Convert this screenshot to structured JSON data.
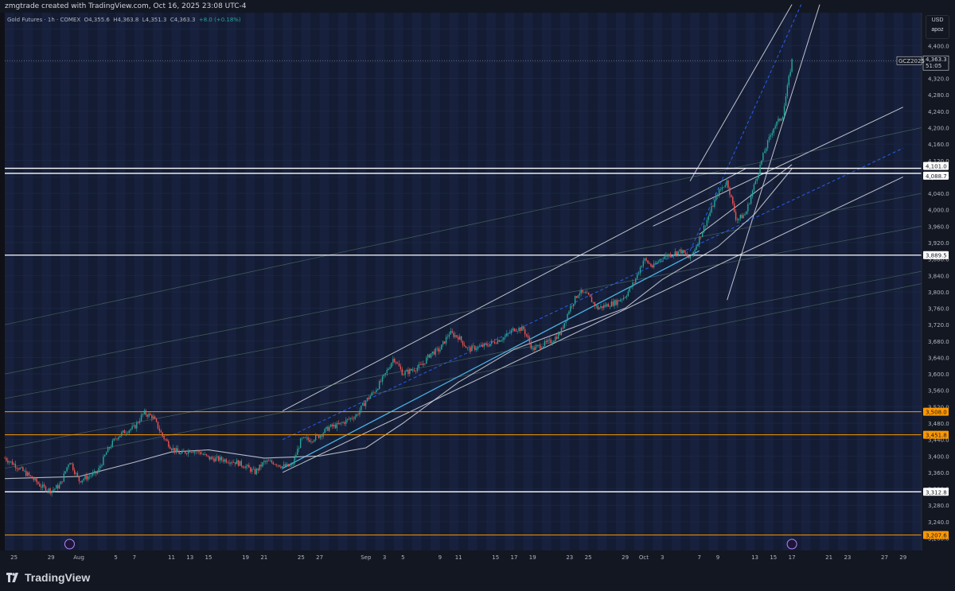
{
  "header": {
    "creator_line": "zmgtrade created with TradingView.com, Oct 16, 2025 23:08 UTC-4",
    "symbol_name": "Gold Futures · 1h · COMEX",
    "open": "O4,355.6",
    "high": "H4,363.8",
    "low": "L4,351.3",
    "close": "C4,363.3",
    "change": "+8.0 (+0.18%)"
  },
  "scale_box": {
    "currency": "USD",
    "mode": "apoz"
  },
  "footer": {
    "brand": "TradingView"
  },
  "colors": {
    "background": "#131c33",
    "grid_band": "#17213d",
    "grid_line": "#1f2a48",
    "up_candle": "#26a69a",
    "down_candle": "#ef5350",
    "white_level": "#ffffff",
    "orange_level": "#ff9800",
    "trend_white": "#d1d4dc",
    "trend_cyan": "#4fc3f7",
    "dashed_channel": "#2962ff",
    "faint_line": "#6a8f7a"
  },
  "chart_data": {
    "type": "candlestick",
    "instrument": "GCZ2025",
    "timeframe": "1h",
    "ylim": [
      3170,
      4480
    ],
    "y_ticks": [
      4440,
      4400,
      4360,
      4320,
      4280,
      4240,
      4200,
      4160,
      4120,
      4080,
      4040,
      4000,
      3960,
      3920,
      3880,
      3840,
      3800,
      3760,
      3720,
      3680,
      3640,
      3600,
      3560,
      3520,
      3480,
      3440,
      3400,
      3360,
      3320,
      3280,
      3240,
      3200
    ],
    "y_tick_labels": [
      "4,440.0",
      "4,400.0",
      "4,360.0",
      "4,320.0",
      "4,280.0",
      "4,240.0",
      "4,200.0",
      "4,160.0",
      "4,120.0",
      "4,080.0",
      "4,040.0",
      "4,000.0",
      "3,960.0",
      "3,920.0",
      "3,880.0",
      "3,840.0",
      "3,800.0",
      "3,760.0",
      "3,720.0",
      "3,680.0",
      "3,640.0",
      "3,600.0",
      "3,560.0",
      "3,520.0",
      "3,480.0",
      "3,440.0",
      "3,400.0",
      "3,360.0",
      "3,320.0",
      "3,280.0",
      "3,240.0",
      "3,200.0"
    ],
    "x_dates": [
      "2025-07-24",
      "2025-07-25",
      "2025-07-29",
      "2025-08-01",
      "2025-08-05",
      "2025-08-07",
      "2025-08-11",
      "2025-08-13",
      "2025-08-15",
      "2025-08-19",
      "2025-08-21",
      "2025-08-25",
      "2025-08-27",
      "2025-09-01",
      "2025-09-03",
      "2025-09-05",
      "2025-09-09",
      "2025-09-11",
      "2025-09-15",
      "2025-09-17",
      "2025-09-19",
      "2025-09-23",
      "2025-09-25",
      "2025-09-29",
      "2025-10-01",
      "2025-10-03",
      "2025-10-07",
      "2025-10-09",
      "2025-10-13",
      "2025-10-15",
      "2025-10-17",
      "2025-10-21",
      "2025-10-23",
      "2025-10-27",
      "2025-10-29"
    ],
    "x_tick_labels": [
      "25",
      "29",
      "Aug",
      "5",
      "7",
      "11",
      "13",
      "15",
      "19",
      "21",
      "25",
      "27",
      "Sep",
      "3",
      "5",
      "9",
      "11",
      "15",
      "17",
      "19",
      "23",
      "25",
      "29",
      "Oct",
      "3",
      "7",
      "9",
      "13",
      "15",
      "17",
      "21",
      "23",
      "27",
      "29"
    ],
    "x_tick_dates": [
      "2025-07-25",
      "2025-07-29",
      "2025-08-01",
      "2025-08-05",
      "2025-08-07",
      "2025-08-11",
      "2025-08-13",
      "2025-08-15",
      "2025-08-19",
      "2025-08-21",
      "2025-08-25",
      "2025-08-27",
      "2025-09-01",
      "2025-09-03",
      "2025-09-05",
      "2025-09-09",
      "2025-09-11",
      "2025-09-15",
      "2025-09-17",
      "2025-09-19",
      "2025-09-23",
      "2025-09-25",
      "2025-09-29",
      "2025-10-01",
      "2025-10-03",
      "2025-10-07",
      "2025-10-09",
      "2025-10-13",
      "2025-10-15",
      "2025-10-17",
      "2025-10-21",
      "2025-10-23",
      "2025-10-27",
      "2025-10-29"
    ],
    "price_path": [
      [
        "2025-07-24",
        3395
      ],
      [
        "2025-07-25",
        3380
      ],
      [
        "2025-07-27",
        3345
      ],
      [
        "2025-07-28",
        3325
      ],
      [
        "2025-07-29",
        3315
      ],
      [
        "2025-07-30",
        3330
      ],
      [
        "2025-07-31",
        3390
      ],
      [
        "2025-08-01",
        3340
      ],
      [
        "2025-08-03",
        3360
      ],
      [
        "2025-08-04",
        3410
      ],
      [
        "2025-08-05",
        3445
      ],
      [
        "2025-08-06",
        3460
      ],
      [
        "2025-08-07",
        3470
      ],
      [
        "2025-08-08",
        3505
      ],
      [
        "2025-08-09",
        3495
      ],
      [
        "2025-08-10",
        3450
      ],
      [
        "2025-08-11",
        3420
      ],
      [
        "2025-08-12",
        3405
      ],
      [
        "2025-08-13",
        3415
      ],
      [
        "2025-08-14",
        3410
      ],
      [
        "2025-08-15",
        3395
      ],
      [
        "2025-08-17",
        3390
      ],
      [
        "2025-08-18",
        3385
      ],
      [
        "2025-08-19",
        3375
      ],
      [
        "2025-08-20",
        3360
      ],
      [
        "2025-08-21",
        3385
      ],
      [
        "2025-08-22",
        3385
      ],
      [
        "2025-08-23",
        3375
      ],
      [
        "2025-08-24",
        3375
      ],
      [
        "2025-08-25",
        3440
      ],
      [
        "2025-08-26",
        3440
      ],
      [
        "2025-08-27",
        3450
      ],
      [
        "2025-08-28",
        3470
      ],
      [
        "2025-08-29",
        3475
      ],
      [
        "2025-08-31",
        3500
      ],
      [
        "2025-09-01",
        3535
      ],
      [
        "2025-09-02",
        3560
      ],
      [
        "2025-09-03",
        3595
      ],
      [
        "2025-09-04",
        3640
      ],
      [
        "2025-09-05",
        3600
      ],
      [
        "2025-09-07",
        3620
      ],
      [
        "2025-09-08",
        3650
      ],
      [
        "2025-09-09",
        3660
      ],
      [
        "2025-09-10",
        3700
      ],
      [
        "2025-09-11",
        3690
      ],
      [
        "2025-09-12",
        3660
      ],
      [
        "2025-09-14",
        3670
      ],
      [
        "2025-09-15",
        3680
      ],
      [
        "2025-09-16",
        3690
      ],
      [
        "2025-09-17",
        3710
      ],
      [
        "2025-09-18",
        3710
      ],
      [
        "2025-09-19",
        3660
      ],
      [
        "2025-09-21",
        3680
      ],
      [
        "2025-09-22",
        3700
      ],
      [
        "2025-09-23",
        3760
      ],
      [
        "2025-09-24",
        3800
      ],
      [
        "2025-09-25",
        3790
      ],
      [
        "2025-09-26",
        3760
      ],
      [
        "2025-09-28",
        3775
      ],
      [
        "2025-09-29",
        3790
      ],
      [
        "2025-09-30",
        3825
      ],
      [
        "2025-10-01",
        3880
      ],
      [
        "2025-10-02",
        3860
      ],
      [
        "2025-10-03",
        3885
      ],
      [
        "2025-10-05",
        3900
      ],
      [
        "2025-10-06",
        3880
      ],
      [
        "2025-10-07",
        3930
      ],
      [
        "2025-10-08",
        3985
      ],
      [
        "2025-10-09",
        4040
      ],
      [
        "2025-10-10",
        4070
      ],
      [
        "2025-10-11",
        3975
      ],
      [
        "2025-10-12",
        3990
      ],
      [
        "2025-10-13",
        4065
      ],
      [
        "2025-10-14",
        4140
      ],
      [
        "2025-10-15",
        4200
      ],
      [
        "2025-10-16",
        4230
      ],
      [
        "2025-10-17",
        4363.3
      ]
    ],
    "horizontal_levels": [
      {
        "label": "4,101.0",
        "value": 4101.0,
        "color": "white"
      },
      {
        "label": "4,088.7",
        "value": 4088.7,
        "color": "white"
      },
      {
        "label": "3,889.5",
        "value": 3889.5,
        "color": "white"
      },
      {
        "label": "3,508.0",
        "value": 3508.0,
        "color": "orange"
      },
      {
        "label": "3,451.8",
        "value": 3451.8,
        "color": "orange"
      },
      {
        "label": "3,312.8",
        "value": 3312.8,
        "color": "white"
      },
      {
        "label": "3,207.6",
        "value": 3207.6,
        "color": "orange"
      }
    ],
    "last_price": {
      "symbol": "GCZ2025",
      "value": 4363.3,
      "label": "4,363.3",
      "countdown": "51:05"
    },
    "trendlines": [
      {
        "style": "white",
        "from": [
          "2025-08-23",
          3510
        ],
        "to": [
          "2025-10-12",
          4100
        ]
      },
      {
        "style": "white",
        "from": [
          "2025-08-23",
          3360
        ],
        "to": [
          "2025-10-29",
          4080
        ]
      },
      {
        "style": "white",
        "from": [
          "2025-10-02",
          3960
        ],
        "to": [
          "2025-10-29",
          4250
        ]
      },
      {
        "style": "white",
        "from": [
          "2025-10-06",
          4070
        ],
        "to": [
          "2025-10-17",
          4500
        ]
      },
      {
        "style": "white",
        "from": [
          "2025-10-10",
          3780
        ],
        "to": [
          "2025-10-20",
          4500
        ]
      },
      {
        "style": "white",
        "from": [
          "2025-10-07",
          3940
        ],
        "to": [
          "2025-10-17",
          4110
        ]
      },
      {
        "style": "cyan",
        "from": [
          "2025-08-23",
          3370
        ],
        "to": [
          "2025-10-07",
          3900
        ]
      },
      {
        "style": "dashed",
        "from": [
          "2025-08-23",
          3440
        ],
        "to": [
          "2025-10-29",
          4150
        ]
      },
      {
        "style": "dashed",
        "from": [
          "2025-10-06",
          3900
        ],
        "to": [
          "2025-10-18",
          4500
        ]
      },
      {
        "style": "faint",
        "from": [
          "2025-07-24",
          3420
        ],
        "to": [
          "2025-10-31",
          3850
        ]
      },
      {
        "style": "faint",
        "from": [
          "2025-07-24",
          3540
        ],
        "to": [
          "2025-10-31",
          3960
        ]
      },
      {
        "style": "faint",
        "from": [
          "2025-07-24",
          3720
        ],
        "to": [
          "2025-10-31",
          4200
        ]
      },
      {
        "style": "faint",
        "from": [
          "2025-07-24",
          3600
        ],
        "to": [
          "2025-10-31",
          4040
        ]
      },
      {
        "style": "faint",
        "from": [
          "2025-07-24",
          3370
        ],
        "to": [
          "2025-10-31",
          3820
        ]
      }
    ],
    "moving_average": [
      [
        "2025-07-24",
        3345
      ],
      [
        "2025-08-01",
        3350
      ],
      [
        "2025-08-07",
        3385
      ],
      [
        "2025-08-11",
        3410
      ],
      [
        "2025-08-15",
        3415
      ],
      [
        "2025-08-21",
        3395
      ],
      [
        "2025-08-27",
        3400
      ],
      [
        "2025-09-01",
        3420
      ],
      [
        "2025-09-05",
        3480
      ],
      [
        "2025-09-11",
        3580
      ],
      [
        "2025-09-17",
        3660
      ],
      [
        "2025-09-23",
        3710
      ],
      [
        "2025-09-29",
        3760
      ],
      [
        "2025-10-03",
        3830
      ],
      [
        "2025-10-09",
        3910
      ],
      [
        "2025-10-13",
        3990
      ],
      [
        "2025-10-17",
        4100
      ]
    ],
    "event_markers": [
      {
        "date": "2025-07-31",
        "kind": "dividend-circle"
      },
      {
        "date": "2025-10-17",
        "kind": "flash-circle"
      }
    ],
    "grid": true
  }
}
